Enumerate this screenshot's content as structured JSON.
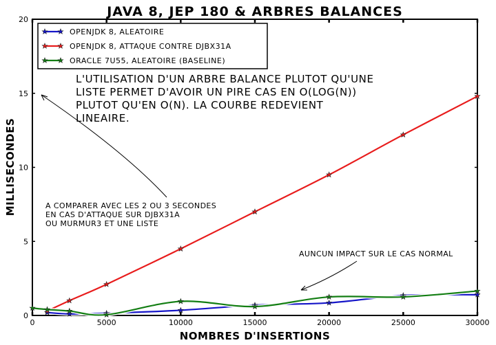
{
  "chart_data": {
    "type": "line",
    "title": "JAVA 8, JEP 180 & ARBRES BALANCES",
    "xlabel": "NOMBRES D'INSERTIONS",
    "ylabel": "MILLISECONDES",
    "xlim": [
      0,
      30000
    ],
    "ylim": [
      0,
      20
    ],
    "x_ticks": [
      0,
      5000,
      10000,
      15000,
      20000,
      25000,
      30000
    ],
    "y_ticks": [
      0,
      5,
      10,
      15,
      20
    ],
    "grid": false,
    "legend_position": "top-left",
    "series": [
      {
        "name": "OPENJDK 8, ALEATOIRE",
        "color": "#1515c8",
        "x": [
          1000,
          2500,
          5000,
          10000,
          15000,
          20000,
          25000,
          30000
        ],
        "values": [
          0.2,
          0.1,
          0.15,
          0.35,
          0.7,
          0.85,
          1.35,
          1.4
        ]
      },
      {
        "name": "OPENJDK 8, ATTAQUE CONTRE DJBX31A",
        "color": "#e81c1c",
        "x": [
          1000,
          2500,
          5000,
          10000,
          15000,
          20000,
          25000,
          30000
        ],
        "values": [
          0.3,
          1.0,
          2.1,
          4.5,
          7.0,
          9.5,
          12.2,
          14.8
        ]
      },
      {
        "name": "ORACLE 7U55, ALEATOIRE (BASELINE)",
        "color": "#137e13",
        "x": [
          0,
          1000,
          2500,
          5000,
          10000,
          15000,
          20000,
          25000,
          30000
        ],
        "values": [
          0.5,
          0.4,
          0.3,
          0.05,
          0.95,
          0.6,
          1.25,
          1.25,
          1.65
        ]
      }
    ],
    "annotations": [
      {
        "text_lines": [
          "L'UTILISATION D'UN ARBRE BALANCE PLUTOT QU'UNE",
          "LISTE PERMET D'AVOIR UN PIRE CAS EN O(LOG(N))",
          "PLUTOT QU'EN O(N). LA COURBE REDEVIENT",
          "LINEAIRE."
        ]
      },
      {
        "text_lines": [
          "A COMPARER AVEC LES 2 OU 3 SECONDES",
          "EN CAS D'ATTAQUE SUR DJBX31A",
          "OU MURMUR3 ET UNE LISTE"
        ]
      },
      {
        "text_lines": [
          "AUNCUN IMPACT SUR LE CAS NORMAL"
        ]
      }
    ]
  }
}
